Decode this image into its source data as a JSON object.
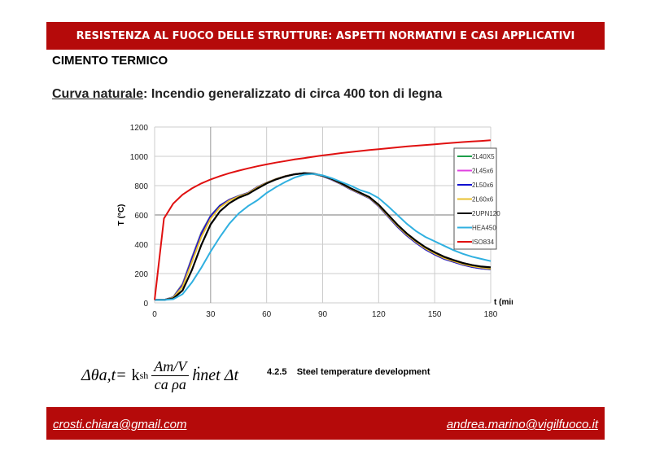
{
  "header": {
    "title": "RESISTENZA AL FUOCO DELLE STRUTTURE: ASPETTI NORMATIVI E CASI APPLICATIVI"
  },
  "section_title": "CIMENTO TERMICO",
  "subtitle": {
    "link": "Curva naturale",
    "rest": ": Incendio generalizzato di circa 400 ton di legna"
  },
  "formula": {
    "lhs": "Δθa,t= ",
    "k": "k",
    "k_sub": "sh",
    "num": "Am/V",
    "den": "ca ρa",
    "rhs": "ḣnet Δt",
    "ref": "4.2.5    Steel temperature development"
  },
  "footer": {
    "left_email": "crosti.chiara@gmail.com",
    "right_email": "andrea.marino@vigilfuoco.it"
  },
  "chart_data": {
    "type": "line",
    "title": "",
    "xlabel": "t (min)",
    "ylabel": "T (°C)",
    "xlim": [
      0,
      180
    ],
    "ylim": [
      0,
      1200
    ],
    "xticks": [
      "0",
      "30",
      "60",
      "90",
      "120",
      "150",
      "180"
    ],
    "yticks": [
      "0",
      "200",
      "400",
      "600",
      "800",
      "1000",
      "1200"
    ],
    "grid": true,
    "legend_position": "right",
    "x": [
      0,
      5,
      10,
      15,
      20,
      25,
      30,
      35,
      40,
      45,
      50,
      55,
      60,
      65,
      70,
      75,
      80,
      85,
      90,
      95,
      100,
      105,
      110,
      115,
      120,
      125,
      130,
      135,
      140,
      145,
      150,
      155,
      160,
      165,
      170,
      175,
      180
    ],
    "series": [
      {
        "name": "2L40X5",
        "color": "#1e9e4a",
        "values": [
          20,
          20,
          40,
          130,
          310,
          480,
          595,
          665,
          705,
          730,
          750,
          790,
          820,
          845,
          865,
          878,
          885,
          880,
          865,
          840,
          810,
          775,
          745,
          715,
          660,
          590,
          520,
          460,
          410,
          365,
          330,
          300,
          280,
          260,
          245,
          235,
          228
        ]
      },
      {
        "name": "2L45x6",
        "color": "#e040e0",
        "values": [
          20,
          20,
          38,
          125,
          305,
          475,
          592,
          663,
          704,
          729,
          750,
          790,
          820,
          845,
          865,
          878,
          885,
          880,
          865,
          840,
          810,
          775,
          745,
          715,
          660,
          590,
          520,
          460,
          410,
          365,
          330,
          300,
          280,
          260,
          245,
          235,
          229
        ]
      },
      {
        "name": "2L50x6",
        "color": "#1010d0",
        "values": [
          20,
          20,
          37,
          120,
          300,
          470,
          590,
          662,
          703,
          728,
          750,
          790,
          820,
          845,
          865,
          878,
          885,
          880,
          865,
          840,
          810,
          775,
          745,
          715,
          660,
          590,
          520,
          460,
          410,
          365,
          330,
          300,
          280,
          260,
          245,
          235,
          230
        ]
      },
      {
        "name": "2L60x6",
        "color": "#e8c030",
        "values": [
          20,
          20,
          35,
          110,
          280,
          450,
          575,
          652,
          698,
          726,
          748,
          788,
          819,
          845,
          865,
          878,
          885,
          880,
          866,
          842,
          812,
          778,
          748,
          718,
          664,
          595,
          526,
          466,
          416,
          371,
          336,
          306,
          285,
          265,
          250,
          240,
          233
        ]
      },
      {
        "name": "2UPN120",
        "color": "#000000",
        "values": [
          20,
          20,
          30,
          85,
          225,
          395,
          535,
          625,
          680,
          718,
          742,
          780,
          815,
          842,
          863,
          877,
          885,
          882,
          868,
          845,
          816,
          782,
          752,
          722,
          670,
          602,
          534,
          474,
          424,
          380,
          345,
          315,
          293,
          273,
          258,
          248,
          242
        ]
      },
      {
        "name": "HEA450",
        "color": "#30b0e0",
        "values": [
          20,
          20,
          25,
          60,
          140,
          240,
          350,
          450,
          540,
          610,
          660,
          700,
          750,
          790,
          825,
          855,
          875,
          880,
          870,
          850,
          825,
          800,
          770,
          750,
          715,
          660,
          600,
          540,
          490,
          450,
          420,
          390,
          360,
          335,
          315,
          300,
          285
        ]
      },
      {
        "name": "ISO834",
        "color": "#e01010",
        "values": [
          20,
          576,
          678,
          739,
          781,
          815,
          842,
          865,
          885,
          902,
          918,
          932,
          945,
          957,
          968,
          979,
          988,
          997,
          1006,
          1014,
          1022,
          1029,
          1036,
          1043,
          1049,
          1055,
          1061,
          1067,
          1072,
          1077,
          1082,
          1087,
          1092,
          1097,
          1101,
          1105,
          1110
        ]
      }
    ]
  }
}
